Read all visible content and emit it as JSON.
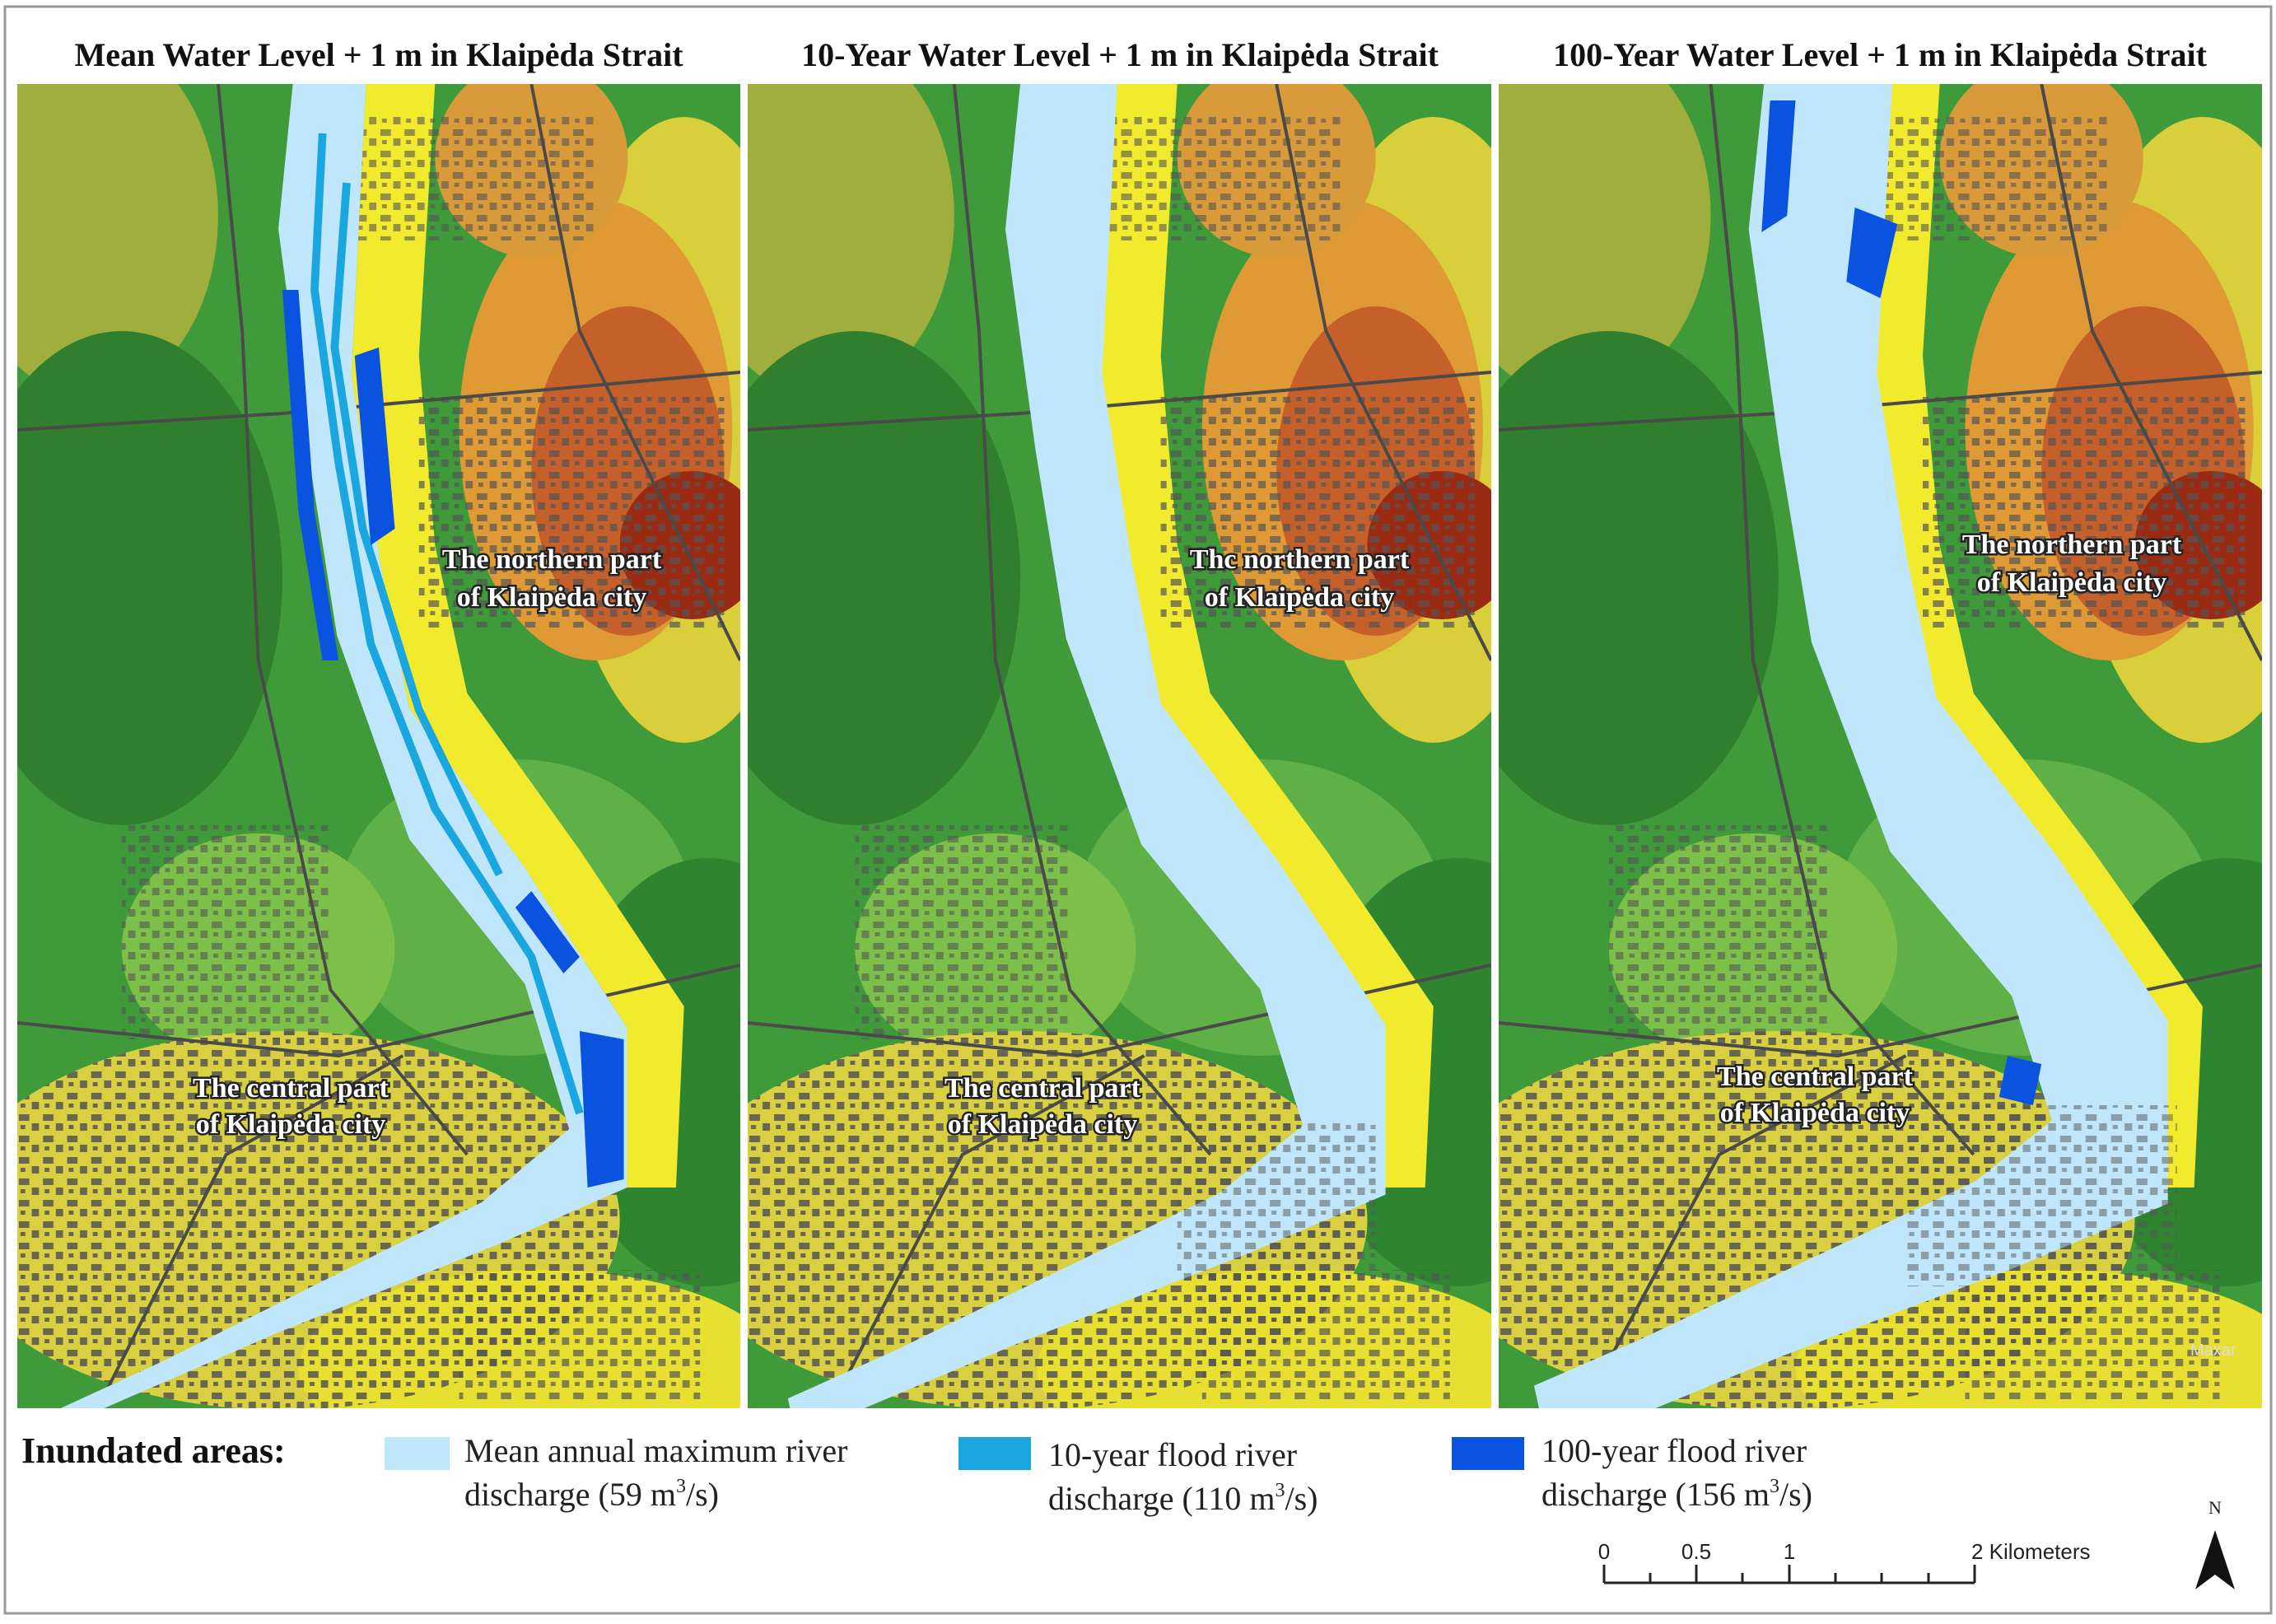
{
  "panels": [
    {
      "title": "Mean Water Level + 1 m in Klaipėda Strait",
      "north_label": [
        "The northern part",
        "of Klaipėda city"
      ],
      "central_label": [
        "The central part",
        "of Klaipėda city"
      ]
    },
    {
      "title": "10-Year Water Level + 1 m in Klaipėda Strait",
      "north_label": [
        "Thc northern part",
        "of Klaipėda city"
      ],
      "central_label": [
        "The central part",
        "of Klaipėda city"
      ]
    },
    {
      "title": "100-Year Water Level + 1 m in Klaipėda Strait",
      "north_label": [
        "The northern part",
        "of Klaipėda city"
      ],
      "central_label": [
        "The central part",
        "of Klaipėda city"
      ],
      "watermark": "Maxar"
    }
  ],
  "legend": {
    "title": "Inundated areas:",
    "items": [
      {
        "line1": "Mean annual maximum river",
        "line2": [
          "discharge (59 m",
          "3",
          "/s)"
        ]
      },
      {
        "line1": "10-year flood river",
        "line2": [
          "discharge (110 m",
          "3",
          "/s)"
        ]
      },
      {
        "line1": "100-year flood river",
        "line2": [
          "discharge (156 m",
          "3",
          "/s)"
        ]
      }
    ]
  },
  "scale_bar": {
    "labels": [
      "0",
      "0.5",
      "1",
      "2 Kilometers"
    ]
  },
  "north_arrow": "N"
}
